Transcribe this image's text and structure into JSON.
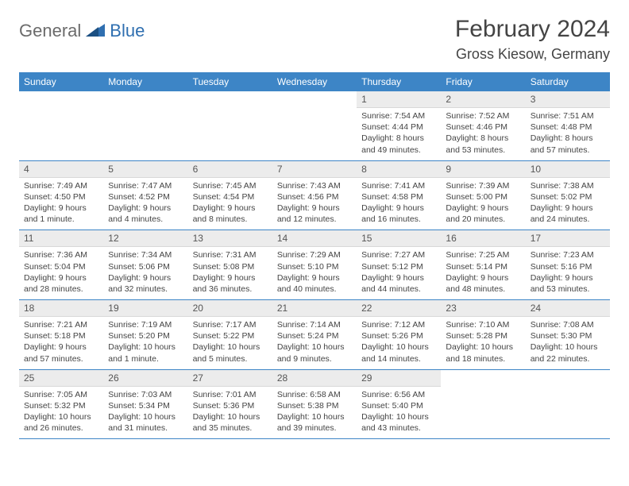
{
  "logo": {
    "textGeneral": "General",
    "textBlue": "Blue"
  },
  "header": {
    "month": "February 2024",
    "location": "Gross Kiesow, Germany"
  },
  "colors": {
    "headerBg": "#3d85c6",
    "headerText": "#ffffff",
    "dayNumBg": "#ececec",
    "borderColor": "#3d85c6",
    "logoBlue": "#2f6fb0",
    "logoGray": "#6b6b6b"
  },
  "dayNames": [
    "Sunday",
    "Monday",
    "Tuesday",
    "Wednesday",
    "Thursday",
    "Friday",
    "Saturday"
  ],
  "weeks": [
    [
      {
        "empty": true
      },
      {
        "empty": true
      },
      {
        "empty": true
      },
      {
        "empty": true
      },
      {
        "n": "1",
        "sunrise": "7:54 AM",
        "sunset": "4:44 PM",
        "daylight": "8 hours and 49 minutes."
      },
      {
        "n": "2",
        "sunrise": "7:52 AM",
        "sunset": "4:46 PM",
        "daylight": "8 hours and 53 minutes."
      },
      {
        "n": "3",
        "sunrise": "7:51 AM",
        "sunset": "4:48 PM",
        "daylight": "8 hours and 57 minutes."
      }
    ],
    [
      {
        "n": "4",
        "sunrise": "7:49 AM",
        "sunset": "4:50 PM",
        "daylight": "9 hours and 1 minute."
      },
      {
        "n": "5",
        "sunrise": "7:47 AM",
        "sunset": "4:52 PM",
        "daylight": "9 hours and 4 minutes."
      },
      {
        "n": "6",
        "sunrise": "7:45 AM",
        "sunset": "4:54 PM",
        "daylight": "9 hours and 8 minutes."
      },
      {
        "n": "7",
        "sunrise": "7:43 AM",
        "sunset": "4:56 PM",
        "daylight": "9 hours and 12 minutes."
      },
      {
        "n": "8",
        "sunrise": "7:41 AM",
        "sunset": "4:58 PM",
        "daylight": "9 hours and 16 minutes."
      },
      {
        "n": "9",
        "sunrise": "7:39 AM",
        "sunset": "5:00 PM",
        "daylight": "9 hours and 20 minutes."
      },
      {
        "n": "10",
        "sunrise": "7:38 AM",
        "sunset": "5:02 PM",
        "daylight": "9 hours and 24 minutes."
      }
    ],
    [
      {
        "n": "11",
        "sunrise": "7:36 AM",
        "sunset": "5:04 PM",
        "daylight": "9 hours and 28 minutes."
      },
      {
        "n": "12",
        "sunrise": "7:34 AM",
        "sunset": "5:06 PM",
        "daylight": "9 hours and 32 minutes."
      },
      {
        "n": "13",
        "sunrise": "7:31 AM",
        "sunset": "5:08 PM",
        "daylight": "9 hours and 36 minutes."
      },
      {
        "n": "14",
        "sunrise": "7:29 AM",
        "sunset": "5:10 PM",
        "daylight": "9 hours and 40 minutes."
      },
      {
        "n": "15",
        "sunrise": "7:27 AM",
        "sunset": "5:12 PM",
        "daylight": "9 hours and 44 minutes."
      },
      {
        "n": "16",
        "sunrise": "7:25 AM",
        "sunset": "5:14 PM",
        "daylight": "9 hours and 48 minutes."
      },
      {
        "n": "17",
        "sunrise": "7:23 AM",
        "sunset": "5:16 PM",
        "daylight": "9 hours and 53 minutes."
      }
    ],
    [
      {
        "n": "18",
        "sunrise": "7:21 AM",
        "sunset": "5:18 PM",
        "daylight": "9 hours and 57 minutes."
      },
      {
        "n": "19",
        "sunrise": "7:19 AM",
        "sunset": "5:20 PM",
        "daylight": "10 hours and 1 minute."
      },
      {
        "n": "20",
        "sunrise": "7:17 AM",
        "sunset": "5:22 PM",
        "daylight": "10 hours and 5 minutes."
      },
      {
        "n": "21",
        "sunrise": "7:14 AM",
        "sunset": "5:24 PM",
        "daylight": "10 hours and 9 minutes."
      },
      {
        "n": "22",
        "sunrise": "7:12 AM",
        "sunset": "5:26 PM",
        "daylight": "10 hours and 14 minutes."
      },
      {
        "n": "23",
        "sunrise": "7:10 AM",
        "sunset": "5:28 PM",
        "daylight": "10 hours and 18 minutes."
      },
      {
        "n": "24",
        "sunrise": "7:08 AM",
        "sunset": "5:30 PM",
        "daylight": "10 hours and 22 minutes."
      }
    ],
    [
      {
        "n": "25",
        "sunrise": "7:05 AM",
        "sunset": "5:32 PM",
        "daylight": "10 hours and 26 minutes."
      },
      {
        "n": "26",
        "sunrise": "7:03 AM",
        "sunset": "5:34 PM",
        "daylight": "10 hours and 31 minutes."
      },
      {
        "n": "27",
        "sunrise": "7:01 AM",
        "sunset": "5:36 PM",
        "daylight": "10 hours and 35 minutes."
      },
      {
        "n": "28",
        "sunrise": "6:58 AM",
        "sunset": "5:38 PM",
        "daylight": "10 hours and 39 minutes."
      },
      {
        "n": "29",
        "sunrise": "6:56 AM",
        "sunset": "5:40 PM",
        "daylight": "10 hours and 43 minutes."
      },
      {
        "empty": true
      },
      {
        "empty": true
      }
    ]
  ],
  "labels": {
    "sunrise": "Sunrise:",
    "sunset": "Sunset:",
    "daylight": "Daylight:"
  }
}
